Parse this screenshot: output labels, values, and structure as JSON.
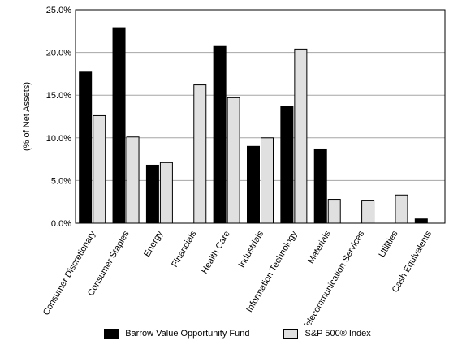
{
  "chart_data": {
    "type": "bar",
    "ylabel": "(% of Net Assets)",
    "ylim": [
      0,
      25
    ],
    "yticks": [
      "0.0%",
      "5.0%",
      "10.0%",
      "15.0%",
      "20.0%",
      "25.0%"
    ],
    "categories": [
      "Consumer Discretionary",
      "Consumer Staples",
      "Energy",
      "Financials",
      "Health Care",
      "Industrials",
      "Information Technology",
      "Materials",
      "Telecommunication Services",
      "Utilities",
      "Cash Equivalents"
    ],
    "series": [
      {
        "name": "Barrow Value Opportunity Fund",
        "color": "#000000",
        "values": [
          17.7,
          22.9,
          6.8,
          0,
          20.7,
          9.0,
          13.7,
          8.7,
          0,
          0,
          0.5
        ]
      },
      {
        "name": "S&P 500® Index",
        "color": "#e0e0e0",
        "values": [
          12.6,
          10.1,
          7.1,
          16.2,
          14.7,
          10.0,
          20.4,
          2.8,
          2.7,
          3.3,
          0
        ]
      }
    ],
    "grid": "horizontal",
    "legend": "bottom"
  }
}
